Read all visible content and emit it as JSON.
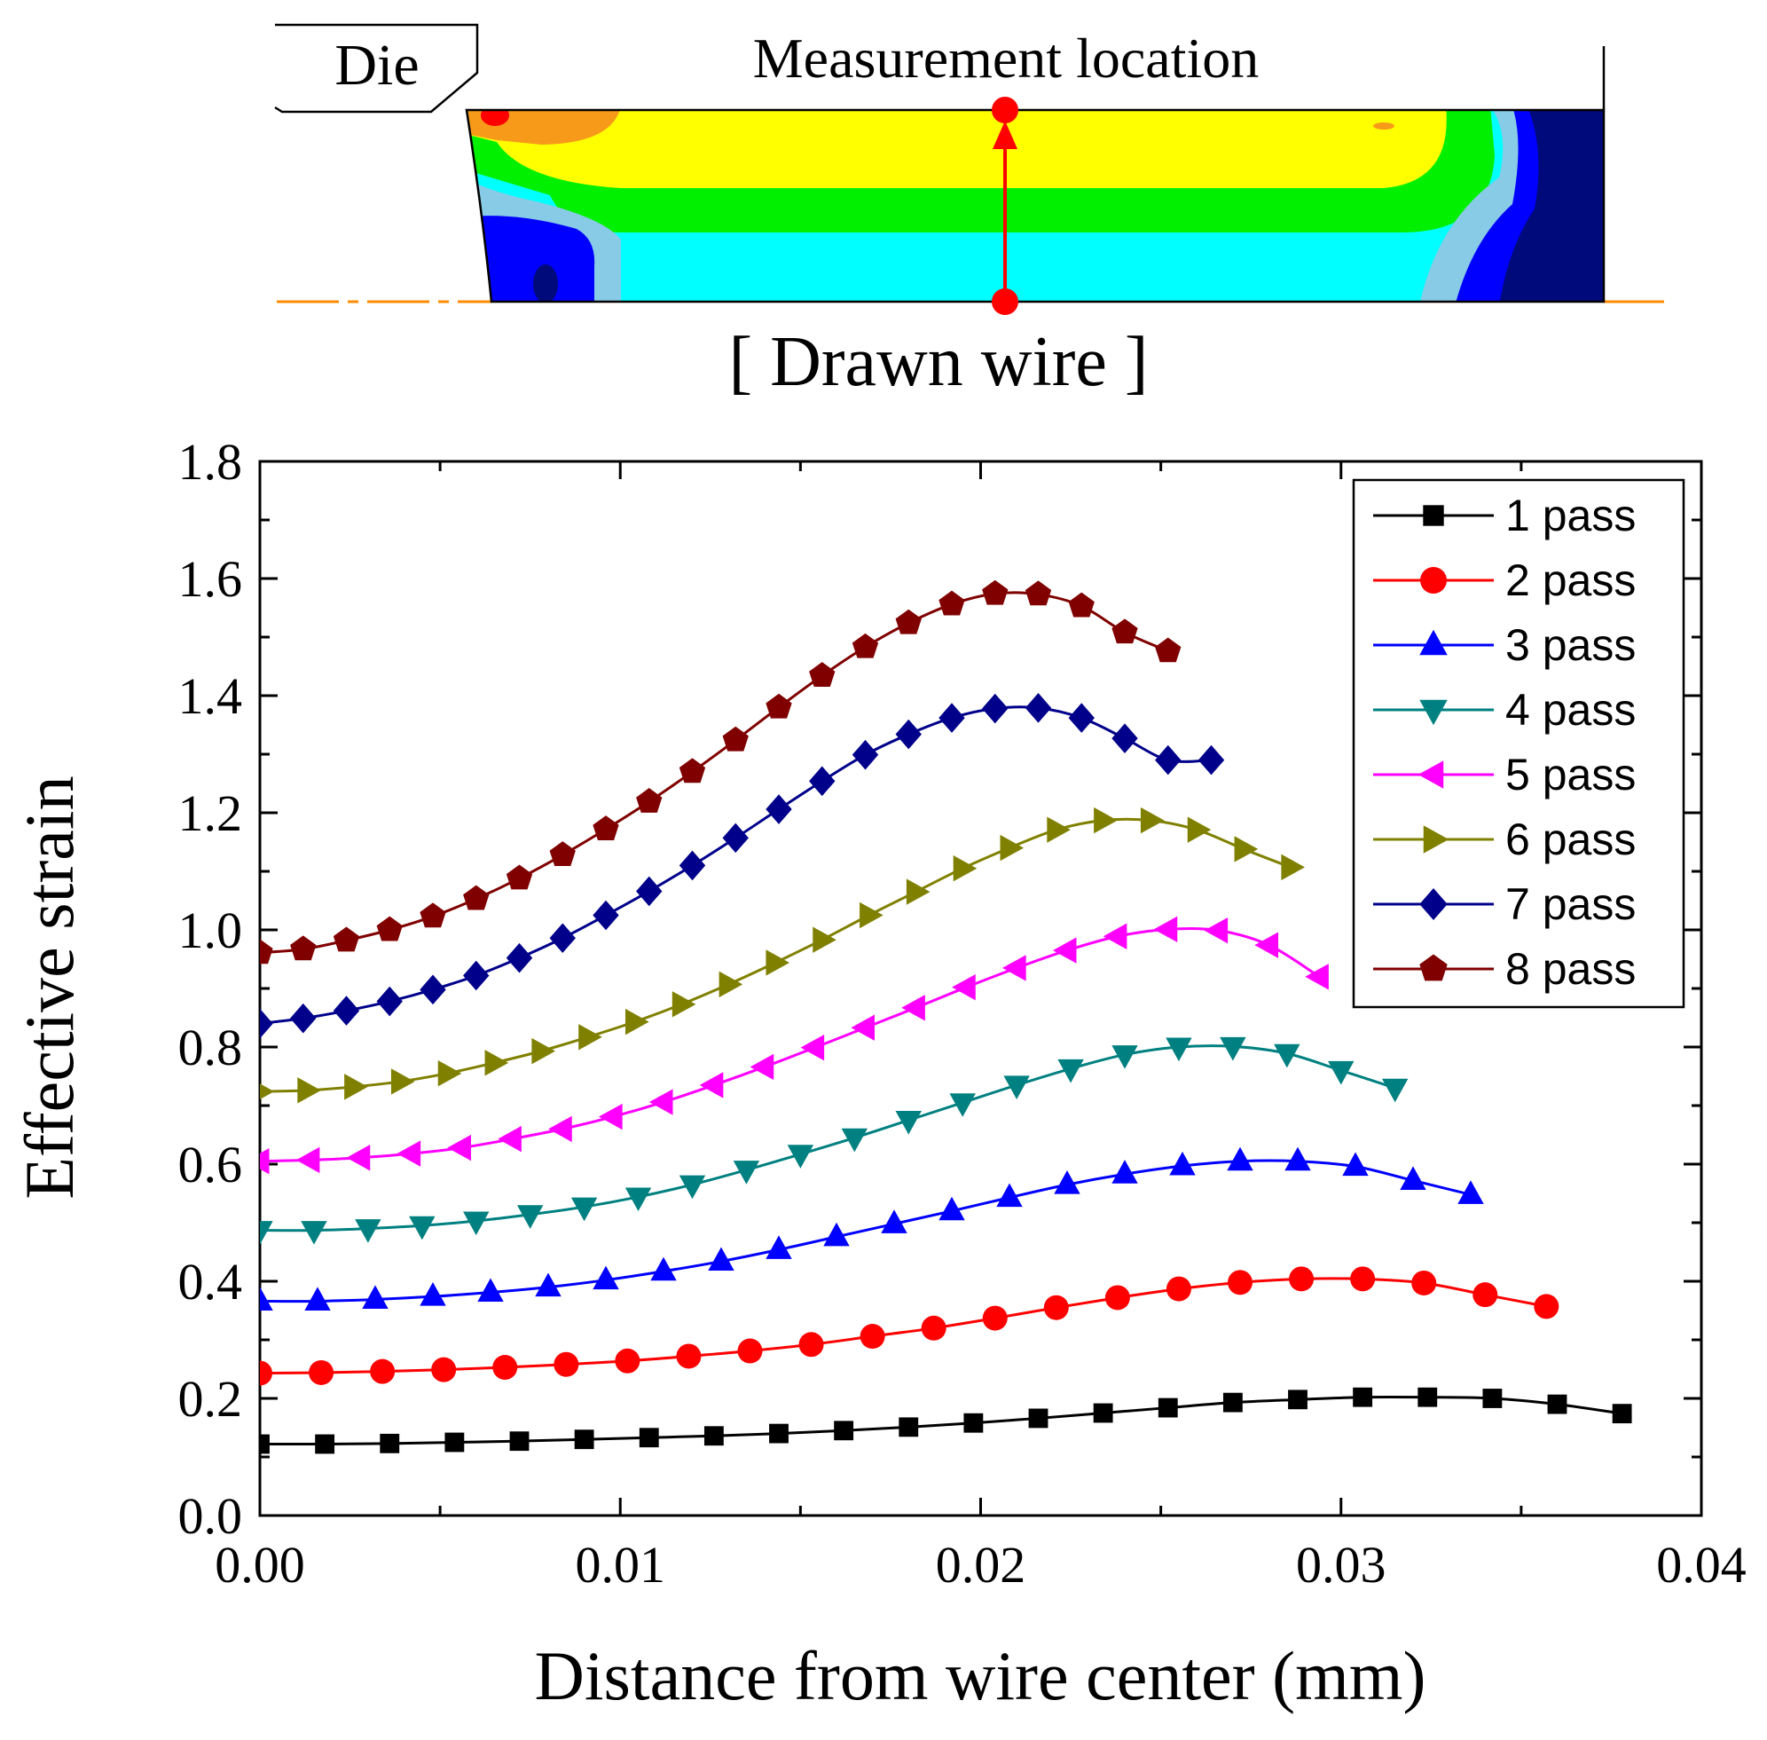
{
  "inset": {
    "die_label": "Die",
    "measurement_label": "Measurement location",
    "caption": "[ Drawn wire ]",
    "colors": {
      "dark_blue": "#000a7a",
      "blue": "#0000ff",
      "light_blue": "#87cbe6",
      "cyan": "#00ffff",
      "green": "#00f000",
      "yellow": "#ffff00",
      "orange": "#f79a1a",
      "red": "#ff0000",
      "axis_line": "#ff8c00"
    }
  },
  "chart_data": {
    "type": "line",
    "xlabel": "Distance from wire center (mm)",
    "ylabel": "Effective strain",
    "xlim": [
      0,
      0.04
    ],
    "ylim": [
      0,
      1.8
    ],
    "xticks": [
      "0.00",
      "0.01",
      "0.02",
      "0.03",
      "0.04"
    ],
    "yticks": [
      "0.0",
      "0.2",
      "0.4",
      "0.6",
      "0.8",
      "1.0",
      "1.2",
      "1.4",
      "1.6",
      "1.8"
    ],
    "legend_position": "top-right",
    "grid": false,
    "series": [
      {
        "name": "1 pass",
        "color": "#000000",
        "marker": "square",
        "x": [
          0.0,
          0.0018,
          0.0036,
          0.0054,
          0.0072,
          0.009,
          0.0108,
          0.0126,
          0.0144,
          0.0162,
          0.018,
          0.0198,
          0.0216,
          0.0234,
          0.0252,
          0.027,
          0.0288,
          0.0306,
          0.0324,
          0.0342,
          0.036,
          0.0378
        ],
        "y": [
          0.122,
          0.122,
          0.123,
          0.125,
          0.127,
          0.13,
          0.133,
          0.136,
          0.14,
          0.145,
          0.151,
          0.158,
          0.166,
          0.175,
          0.184,
          0.193,
          0.198,
          0.202,
          0.202,
          0.2,
          0.19,
          0.174
        ]
      },
      {
        "name": "2 pass",
        "color": "#ff0000",
        "marker": "circle",
        "x": [
          0.0,
          0.0017,
          0.0034,
          0.0051,
          0.0068,
          0.0085,
          0.0102,
          0.0119,
          0.0136,
          0.0153,
          0.017,
          0.0187,
          0.0204,
          0.0221,
          0.0238,
          0.0255,
          0.0272,
          0.0289,
          0.0306,
          0.0323,
          0.034,
          0.0357
        ],
        "y": [
          0.243,
          0.244,
          0.246,
          0.249,
          0.253,
          0.258,
          0.264,
          0.272,
          0.281,
          0.292,
          0.306,
          0.32,
          0.337,
          0.355,
          0.372,
          0.387,
          0.398,
          0.404,
          0.404,
          0.397,
          0.377,
          0.357
        ]
      },
      {
        "name": "3 pass",
        "color": "#0000ff",
        "marker": "triangle-up",
        "x": [
          0.0,
          0.0016,
          0.0032,
          0.0048,
          0.0064,
          0.008,
          0.0096,
          0.0112,
          0.0128,
          0.0144,
          0.016,
          0.0176,
          0.0192,
          0.0208,
          0.0224,
          0.024,
          0.0256,
          0.0272,
          0.0288,
          0.0304,
          0.032,
          0.0336
        ],
        "y": [
          0.366,
          0.366,
          0.369,
          0.374,
          0.381,
          0.39,
          0.402,
          0.417,
          0.434,
          0.454,
          0.476,
          0.498,
          0.52,
          0.543,
          0.565,
          0.583,
          0.597,
          0.605,
          0.605,
          0.596,
          0.572,
          0.548
        ]
      },
      {
        "name": "4 pass",
        "color": "#008080",
        "marker": "triangle-down",
        "x": [
          0.0,
          0.0015,
          0.003,
          0.0045,
          0.006,
          0.0075,
          0.009,
          0.0105,
          0.012,
          0.0135,
          0.015,
          0.0165,
          0.018,
          0.0195,
          0.021,
          0.0225,
          0.024,
          0.0255,
          0.027,
          0.0285,
          0.03,
          0.0315
        ],
        "y": [
          0.487,
          0.487,
          0.49,
          0.495,
          0.503,
          0.514,
          0.527,
          0.544,
          0.565,
          0.59,
          0.617,
          0.645,
          0.675,
          0.705,
          0.735,
          0.763,
          0.787,
          0.8,
          0.801,
          0.789,
          0.76,
          0.73
        ]
      },
      {
        "name": "5 pass",
        "color": "#ff00ff",
        "marker": "triangle-left",
        "x": [
          0.0,
          0.0014,
          0.0028,
          0.0042,
          0.0056,
          0.007,
          0.0084,
          0.0098,
          0.0112,
          0.0126,
          0.014,
          0.0154,
          0.0168,
          0.0182,
          0.0196,
          0.021,
          0.0224,
          0.0238,
          0.0252,
          0.0266,
          0.028,
          0.0294
        ],
        "y": [
          0.605,
          0.607,
          0.611,
          0.618,
          0.628,
          0.643,
          0.66,
          0.681,
          0.706,
          0.735,
          0.766,
          0.799,
          0.833,
          0.867,
          0.902,
          0.935,
          0.965,
          0.989,
          1.001,
          0.999,
          0.974,
          0.92
        ]
      },
      {
        "name": "6 pass",
        "color": "#808000",
        "marker": "triangle-right",
        "x": [
          0.0,
          0.0013,
          0.0026,
          0.0039,
          0.0052,
          0.0065,
          0.0078,
          0.0091,
          0.0104,
          0.0117,
          0.013,
          0.0143,
          0.0156,
          0.0169,
          0.0182,
          0.0195,
          0.0208,
          0.0221,
          0.0234,
          0.0247,
          0.026,
          0.0273,
          0.0286
        ],
        "y": [
          0.724,
          0.726,
          0.732,
          0.741,
          0.755,
          0.773,
          0.793,
          0.817,
          0.843,
          0.873,
          0.907,
          0.944,
          0.983,
          1.025,
          1.065,
          1.105,
          1.14,
          1.171,
          1.187,
          1.187,
          1.171,
          1.138,
          1.107
        ]
      },
      {
        "name": "7 pass",
        "color": "#00008b",
        "marker": "diamond",
        "x": [
          0.0,
          0.0012,
          0.0024,
          0.0036,
          0.0048,
          0.006,
          0.0072,
          0.0084,
          0.0096,
          0.0108,
          0.012,
          0.0132,
          0.0144,
          0.0156,
          0.0168,
          0.018,
          0.0192,
          0.0204,
          0.0216,
          0.0228,
          0.024,
          0.0252,
          0.0264
        ],
        "y": [
          0.84,
          0.849,
          0.862,
          0.878,
          0.898,
          0.922,
          0.952,
          0.986,
          1.025,
          1.066,
          1.11,
          1.157,
          1.206,
          1.254,
          1.299,
          1.334,
          1.362,
          1.378,
          1.379,
          1.362,
          1.327,
          1.29,
          1.29
        ]
      },
      {
        "name": "8 pass",
        "color": "#800000",
        "marker": "pentagon",
        "x": [
          0.0,
          0.0012,
          0.0024,
          0.0036,
          0.0048,
          0.006,
          0.0072,
          0.0084,
          0.0096,
          0.0108,
          0.012,
          0.0132,
          0.0144,
          0.0156,
          0.0168,
          0.018,
          0.0192,
          0.0204,
          0.0216,
          0.0228,
          0.024,
          0.0252
        ],
        "y": [
          0.961,
          0.967,
          0.982,
          1.0,
          1.023,
          1.053,
          1.088,
          1.128,
          1.172,
          1.219,
          1.27,
          1.324,
          1.38,
          1.434,
          1.483,
          1.524,
          1.556,
          1.574,
          1.573,
          1.553,
          1.508,
          1.476
        ]
      }
    ]
  }
}
